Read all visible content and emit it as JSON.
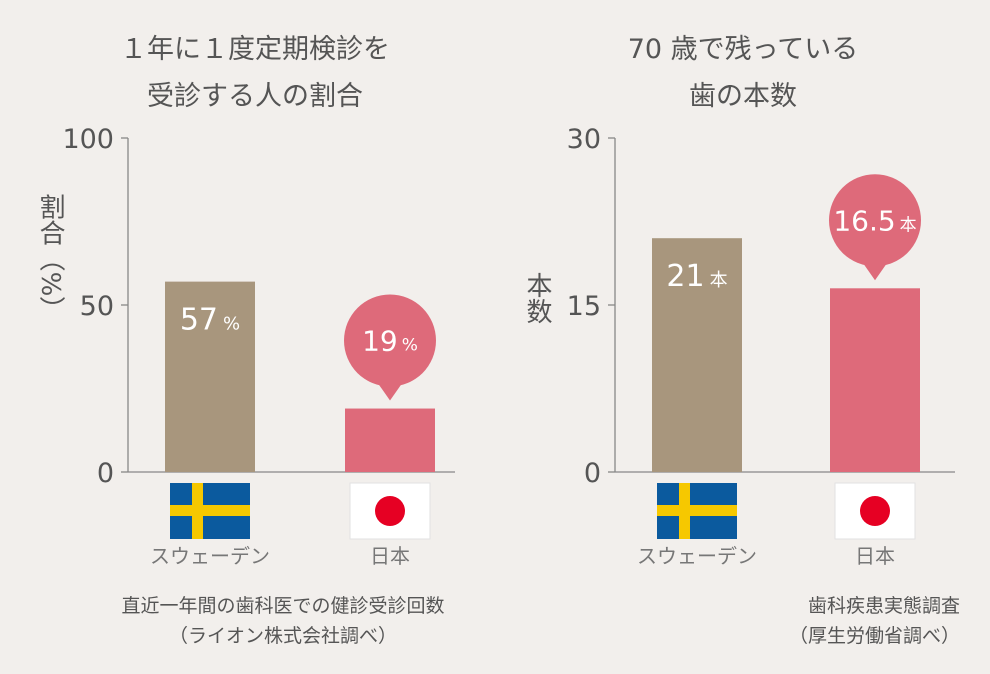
{
  "colors": {
    "background": "#f2efec",
    "sweden_bar": "#a8967d",
    "japan_bar": "#de6a7a",
    "axis": "#888888",
    "text": "#555555",
    "bar_label": "#ffffff",
    "flag_blue": "#0b5a9e",
    "flag_yellow": "#f6c800",
    "flag_red": "#e60023",
    "flag_white": "#ffffff"
  },
  "chart_data": [
    {
      "type": "bar",
      "title_lines": [
        "１年に１度定期検診を",
        "受診する人の割合"
      ],
      "ylabel": "割合（%）",
      "ylim": [
        0,
        100
      ],
      "yticks": [
        0,
        50,
        100
      ],
      "ytick_labels": [
        "0",
        "50",
        "100"
      ],
      "categories": [
        "スウェーデン",
        "日本"
      ],
      "values": [
        57,
        19
      ],
      "value_numbers": [
        "57",
        "19"
      ],
      "value_units": [
        "%",
        "%"
      ],
      "label_styles": [
        "inside",
        "bubble"
      ],
      "flags": [
        "sweden-flag-icon",
        "japan-flag-icon"
      ],
      "source_lines": [
        "直近一年間の歯科医での健診受診回数",
        "（ライオン株式会社調べ）"
      ]
    },
    {
      "type": "bar",
      "title_lines": [
        "70 歳で残っている",
        "歯の本数"
      ],
      "ylabel": "本数",
      "ylim": [
        0,
        30
      ],
      "yticks": [
        0,
        15,
        30
      ],
      "ytick_labels": [
        "0",
        "15",
        "30"
      ],
      "categories": [
        "スウェーデン",
        "日本"
      ],
      "values": [
        21,
        16.5
      ],
      "value_numbers": [
        "21",
        "16.5"
      ],
      "value_units": [
        "本",
        "本"
      ],
      "label_styles": [
        "inside",
        "bubble"
      ],
      "flags": [
        "sweden-flag-icon",
        "japan-flag-icon"
      ],
      "source_lines": [
        "歯科疾患実態調査",
        "（厚生労働省調べ）"
      ]
    }
  ]
}
